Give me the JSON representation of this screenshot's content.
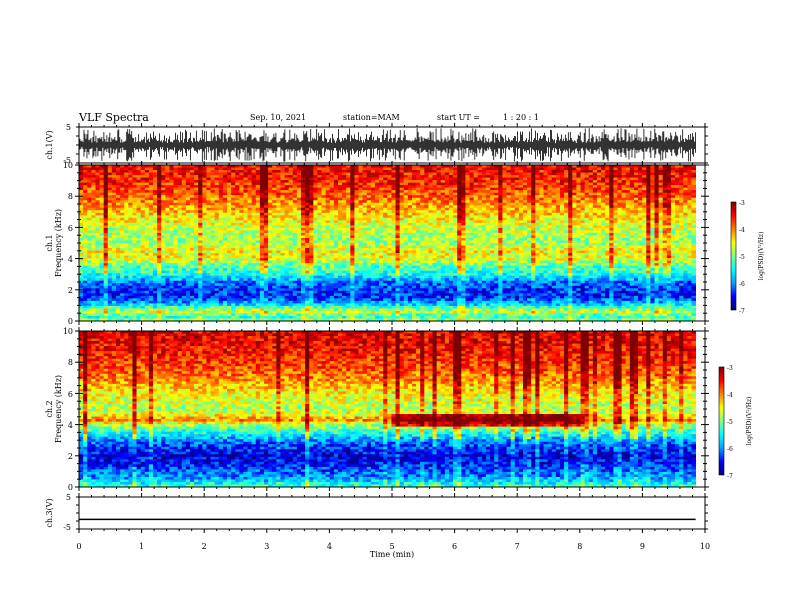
{
  "header": {
    "title": "VLF Spectra",
    "date": "Sep. 10, 2021",
    "station": "station=MAM",
    "start_ut_label": "start UT =",
    "start_ut_value": "1 : 20 : 1"
  },
  "colors": {
    "colormap": [
      "#00007f",
      "#0000ff",
      "#00a0ff",
      "#00ffff",
      "#7fff7f",
      "#ffff00",
      "#ff8000",
      "#ff0000",
      "#7f0000"
    ],
    "trace": "#000000"
  },
  "chart_data": [
    {
      "type": "line",
      "name": "ch1-waveform",
      "ylabel": "ch.1(V)",
      "ylim": [
        -5,
        5
      ],
      "yticks": [
        "5",
        "-5"
      ],
      "description": "dense noise waveform with spikes filling most of the +/-5 V range"
    },
    {
      "type": "heatmap",
      "name": "ch1-spectrogram",
      "ylabel": [
        "ch.1",
        "Frequency (kHz)"
      ],
      "ylim": [
        0,
        10
      ],
      "yticks": [
        "0",
        "2",
        "4",
        "6",
        "8",
        "10"
      ],
      "colorbar": {
        "label": "log(PSD)(V²/Hz)",
        "range": [
          -7,
          -3
        ],
        "ticks": [
          "-3",
          "-4",
          "-5",
          "-6",
          "-7"
        ]
      },
      "freq_profile_khz": [
        [
          0.0,
          -4.8
        ],
        [
          0.3,
          -5.4
        ],
        [
          0.6,
          -4.6
        ],
        [
          1.0,
          -5.6
        ],
        [
          1.5,
          -6.4
        ],
        [
          2.0,
          -6.4
        ],
        [
          2.5,
          -6.1
        ],
        [
          3.0,
          -5.4
        ],
        [
          3.5,
          -5.2
        ],
        [
          4.0,
          -4.6
        ],
        [
          4.5,
          -4.5
        ],
        [
          5.0,
          -4.9
        ],
        [
          6.0,
          -4.7
        ],
        [
          7.0,
          -4.3
        ],
        [
          8.0,
          -3.9
        ],
        [
          9.0,
          -3.6
        ],
        [
          10.0,
          -3.5
        ]
      ]
    },
    {
      "type": "heatmap",
      "name": "ch2-spectrogram",
      "ylabel": [
        "ch.2",
        "Frequency (kHz)"
      ],
      "ylim": [
        0,
        10
      ],
      "yticks": [
        "0",
        "2",
        "4",
        "6",
        "8",
        "10"
      ],
      "colorbar": {
        "label": "log(PSD)(V²/Hz)",
        "range": [
          -7,
          -3
        ],
        "ticks": [
          "-3",
          "-4",
          "-5",
          "-6",
          "-7"
        ]
      },
      "freq_profile_khz": [
        [
          0.0,
          -5.2
        ],
        [
          0.5,
          -5.9
        ],
        [
          1.0,
          -6.2
        ],
        [
          1.5,
          -6.5
        ],
        [
          2.0,
          -6.6
        ],
        [
          2.5,
          -6.4
        ],
        [
          3.0,
          -6.0
        ],
        [
          3.5,
          -5.4
        ],
        [
          4.0,
          -4.8
        ],
        [
          4.3,
          -4.0
        ],
        [
          4.6,
          -4.5
        ],
        [
          5.0,
          -4.8
        ],
        [
          6.0,
          -4.5
        ],
        [
          7.0,
          -4.0
        ],
        [
          8.0,
          -3.7
        ],
        [
          9.0,
          -3.5
        ],
        [
          10.0,
          -3.4
        ]
      ],
      "features": [
        {
          "label": "enhanced band",
          "freq_khz": 4.3,
          "time_min": [
            5.0,
            8.0
          ]
        }
      ]
    },
    {
      "type": "line",
      "name": "ch3-waveform",
      "ylabel": "ch.3(V)",
      "ylim": [
        -5,
        5
      ],
      "yticks": [
        "5",
        "-5"
      ],
      "x": [
        0,
        9.85
      ],
      "y": [
        -2,
        -2
      ]
    }
  ],
  "xaxis": {
    "label": "Time  (min)",
    "range": [
      0,
      10
    ],
    "ticks": [
      "0",
      "1",
      "2",
      "3",
      "4",
      "5",
      "6",
      "7",
      "8",
      "9",
      "10"
    ]
  }
}
